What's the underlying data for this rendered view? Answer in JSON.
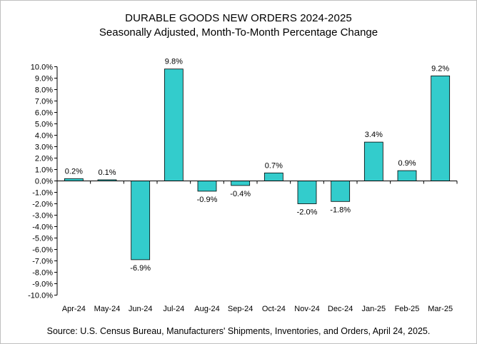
{
  "chart_data": {
    "type": "bar",
    "title": "DURABLE GOODS NEW ORDERS 2024-2025",
    "subtitle": "Seasonally Adjusted,  Month-To-Month Percentage Change",
    "source": "Source: U.S. Census Bureau, Manufacturers' Shipments, Inventories, and Orders, April 24, 2025.",
    "categories": [
      "Apr-24",
      "May-24",
      "Jun-24",
      "Jul-24",
      "Aug-24",
      "Sep-24",
      "Oct-24",
      "Nov-24",
      "Dec-24",
      "Jan-25",
      "Feb-25",
      "Mar-25"
    ],
    "values": [
      0.2,
      0.1,
      -6.9,
      9.8,
      -0.9,
      -0.4,
      0.7,
      -2.0,
      -1.8,
      3.4,
      0.9,
      9.2
    ],
    "data_labels": [
      "0.2%",
      "0.1%",
      "-6.9%",
      "9.8%",
      "-0.9%",
      "-0.4%",
      "0.7%",
      "-2.0%",
      "-1.8%",
      "3.4%",
      "0.9%",
      "9.2%"
    ],
    "ylim": [
      -10,
      10
    ],
    "yticks": [
      "10.0%",
      "9.0%",
      "8.0%",
      "7.0%",
      "6.0%",
      "5.0%",
      "4.0%",
      "3.0%",
      "2.0%",
      "1.0%",
      "0.0%",
      "-1.0%",
      "-2.0%",
      "-3.0%",
      "-4.0%",
      "-5.0%",
      "-6.0%",
      "-7.0%",
      "-8.0%",
      "-9.0%",
      "-10.0%"
    ],
    "bar_color": "#33CCCC",
    "grid": false,
    "legend": "none"
  }
}
